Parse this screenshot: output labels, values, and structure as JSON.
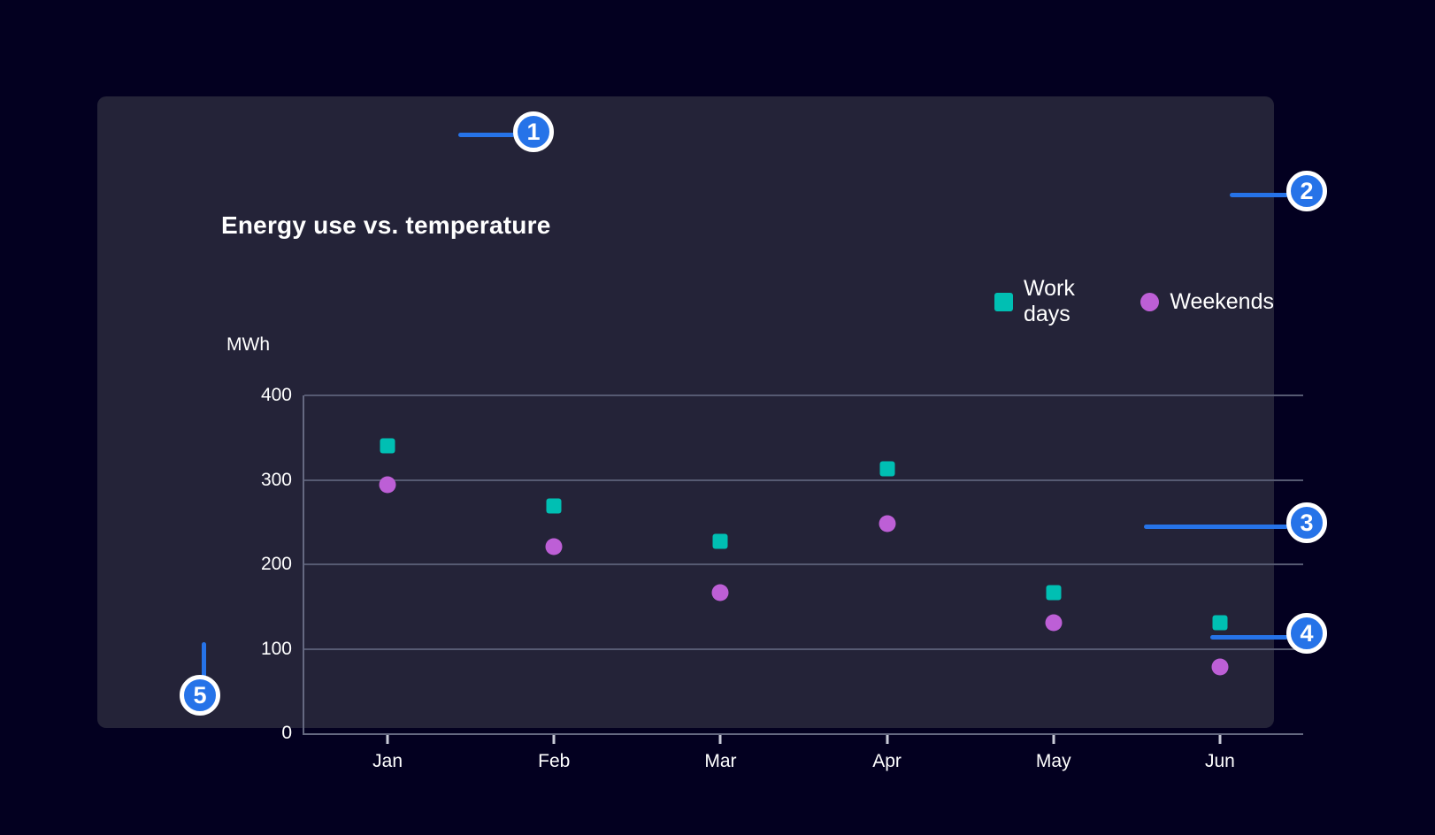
{
  "page_bg": "#030020",
  "card_bg": "#242338",
  "accent_blue": "#2673e8",
  "chart_data": {
    "type": "scatter",
    "title": "Energy use vs. temperature",
    "ylabel": "MWh",
    "xlabel": "",
    "ylim": [
      0,
      400
    ],
    "yticks": [
      0,
      100,
      200,
      300,
      400
    ],
    "categories": [
      "Jan",
      "Feb",
      "Mar",
      "Apr",
      "May",
      "Jun"
    ],
    "series": [
      {
        "name": "Work days",
        "marker": "square",
        "color": "#00bfb3",
        "values": [
          340,
          269,
          227,
          313,
          167,
          131
        ]
      },
      {
        "name": "Weekends",
        "marker": "circle",
        "color": "#bd5fd6",
        "values": [
          294,
          221,
          167,
          248,
          131,
          79
        ]
      }
    ],
    "grid": true,
    "legend_position": "top-right"
  },
  "legend": [
    {
      "label": "Work days",
      "marker": "square",
      "color": "#00bfb3"
    },
    {
      "label": "Weekends",
      "marker": "circle",
      "color": "#bd5fd6"
    }
  ],
  "annotations": [
    {
      "label": "1",
      "points_to": "chart-title"
    },
    {
      "label": "2",
      "points_to": "legend"
    },
    {
      "label": "3",
      "points_to": "data-point"
    },
    {
      "label": "4",
      "points_to": "x-axis"
    },
    {
      "label": "5",
      "points_to": "y-axis"
    }
  ]
}
